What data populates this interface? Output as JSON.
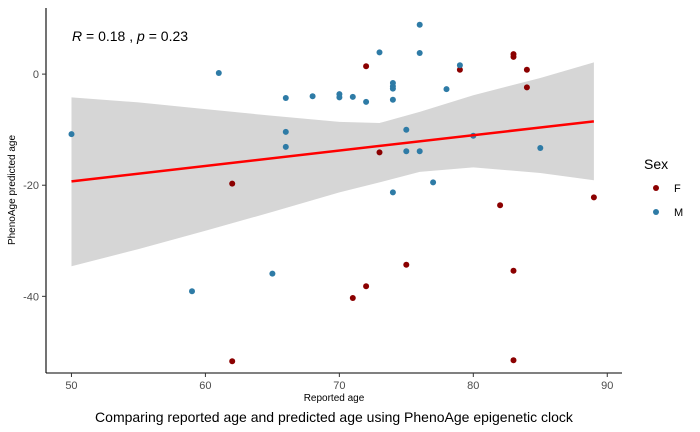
{
  "chart_data": {
    "type": "scatter",
    "caption": "Comparing reported age and predicted age using PhenoAge epigenetic clock",
    "xlabel": "Reported age",
    "ylabel": "PhenoAge predicted age",
    "xlim": [
      48.1,
      91.1
    ],
    "ylim": [
      -53.8,
      11.9
    ],
    "x_ticks": [
      50,
      60,
      70,
      80,
      90
    ],
    "y_ticks": [
      -40,
      -20,
      0
    ],
    "grid": false,
    "annotation": {
      "r_symbol": "R",
      "r_value": "0.18",
      "separator": ",",
      "p_symbol": "p",
      "p_value": "0.23"
    },
    "legend": {
      "title": "Sex",
      "placement": "right",
      "entries": [
        {
          "label": "F",
          "color": "#8B0000"
        },
        {
          "label": "M",
          "color": "#2E7BA6"
        }
      ]
    },
    "regression": {
      "color": "#FF0000",
      "band_color": "#D6D6D6",
      "line": [
        [
          50,
          -19.3
        ],
        [
          89,
          -8.5
        ]
      ],
      "band_upper": [
        [
          50,
          -4.2
        ],
        [
          55,
          -5.1
        ],
        [
          60,
          -6.3
        ],
        [
          65,
          -7.5
        ],
        [
          70,
          -8.6
        ],
        [
          73,
          -8.8
        ],
        [
          76,
          -6.8
        ],
        [
          80,
          -3.8
        ],
        [
          85,
          -0.7
        ],
        [
          89,
          2.1
        ]
      ],
      "band_lower": [
        [
          50,
          -34.6
        ],
        [
          55,
          -31.5
        ],
        [
          60,
          -28.2
        ],
        [
          65,
          -24.8
        ],
        [
          70,
          -21.3
        ],
        [
          73,
          -19.5
        ],
        [
          76,
          -17.6
        ],
        [
          80,
          -16.8
        ],
        [
          85,
          -17.8
        ],
        [
          89,
          -19.1
        ]
      ]
    },
    "series": [
      {
        "name": "F",
        "color": "#8B0000",
        "points": [
          [
            62,
            -19.7
          ],
          [
            62,
            -51.7
          ],
          [
            71,
            -40.3
          ],
          [
            72,
            -38.2
          ],
          [
            72,
            1.4
          ],
          [
            73,
            -14.1
          ],
          [
            75,
            -34.3
          ],
          [
            79,
            0.8
          ],
          [
            82,
            -23.6
          ],
          [
            83,
            3.6
          ],
          [
            83,
            3.1
          ],
          [
            83,
            -35.4
          ],
          [
            83,
            -51.5
          ],
          [
            84,
            0.8
          ],
          [
            84,
            -2.4
          ],
          [
            89,
            -22.2
          ]
        ]
      },
      {
        "name": "M",
        "color": "#2E7BA6",
        "points": [
          [
            50,
            -10.8
          ],
          [
            59,
            -39.1
          ],
          [
            61,
            0.2
          ],
          [
            65,
            -35.9
          ],
          [
            66,
            -4.3
          ],
          [
            66,
            -10.4
          ],
          [
            66,
            -13.1
          ],
          [
            68,
            -4.0
          ],
          [
            70,
            -3.6
          ],
          [
            70,
            -4.2
          ],
          [
            71,
            -4.1
          ],
          [
            72,
            -5.0
          ],
          [
            73,
            3.9
          ],
          [
            74,
            -1.6
          ],
          [
            74,
            -2.2
          ],
          [
            74,
            -2.6
          ],
          [
            74,
            -4.6
          ],
          [
            74,
            -21.3
          ],
          [
            75,
            -10.0
          ],
          [
            75,
            -13.9
          ],
          [
            76,
            8.9
          ],
          [
            76,
            3.8
          ],
          [
            76,
            -13.9
          ],
          [
            77,
            -19.5
          ],
          [
            78,
            -2.7
          ],
          [
            79,
            1.6
          ],
          [
            80,
            -11.1
          ],
          [
            85,
            -13.3
          ]
        ]
      }
    ]
  }
}
